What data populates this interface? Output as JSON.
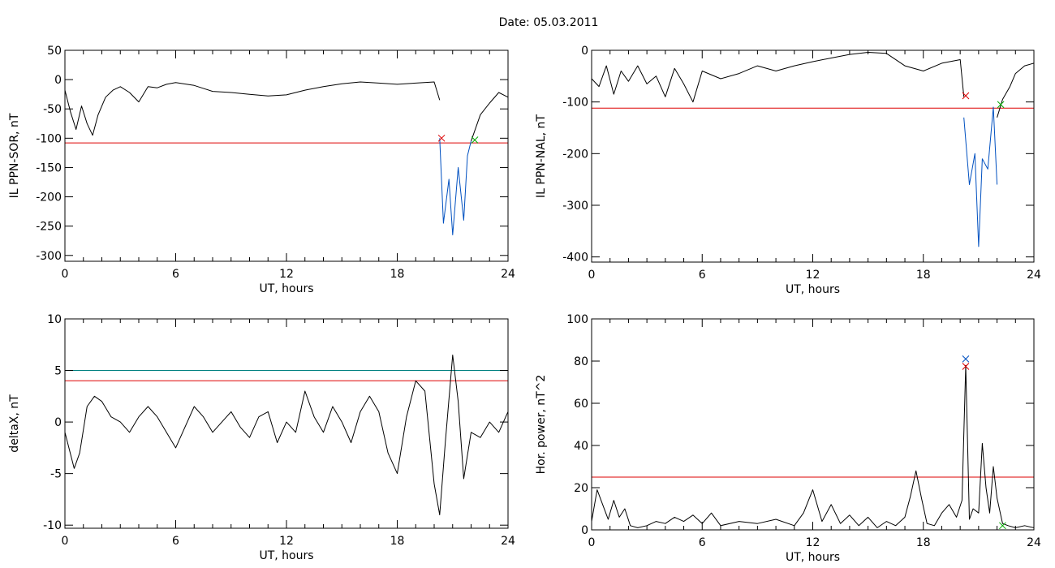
{
  "figure": {
    "title": "Date:  05.03.2011"
  },
  "chart_data": [
    {
      "type": "line",
      "title": "",
      "xlabel": "UT, hours",
      "ylabel": "IL PPN-SOR, nT",
      "xlim": [
        0,
        24
      ],
      "ylim": [
        -310,
        50
      ],
      "xticks": [
        0,
        6,
        12,
        18,
        24
      ],
      "yticks": [
        50,
        0,
        -50,
        -100,
        -150,
        -200,
        -250,
        -300
      ],
      "grid": false,
      "series": [
        {
          "color": "#000000",
          "x": [
            0,
            0.3,
            0.6,
            0.9,
            1.2,
            1.5,
            1.8,
            2.2,
            2.6,
            3,
            3.5,
            4,
            4.5,
            5,
            5.5,
            6,
            7,
            8,
            9,
            10,
            11,
            12,
            13,
            14,
            15,
            16,
            17,
            18,
            19,
            20,
            20.3
          ],
          "y": [
            -18,
            -55,
            -85,
            -45,
            -75,
            -95,
            -60,
            -30,
            -18,
            -12,
            -22,
            -38,
            -12,
            -14,
            -8,
            -5,
            -10,
            -20,
            -22,
            -25,
            -28,
            -26,
            -18,
            -12,
            -7,
            -4,
            -6,
            -8,
            -6,
            -4,
            -35
          ]
        },
        {
          "color": "#0050c0",
          "x": [
            20.3,
            20.5,
            20.8,
            21.0,
            21.3,
            21.6,
            21.8,
            22.0
          ],
          "y": [
            -100,
            -245,
            -170,
            -265,
            -150,
            -240,
            -130,
            -105
          ]
        },
        {
          "color": "#000000",
          "x": [
            22.0,
            22.5,
            23,
            23.5,
            24
          ],
          "y": [
            -105,
            -60,
            -40,
            -22,
            -30
          ]
        }
      ],
      "thresholds": [
        {
          "value": -108,
          "color": "#dd0000"
        }
      ],
      "markers": [
        {
          "x": 20.4,
          "y": -100,
          "symbol": "x",
          "color": "#dd0000"
        },
        {
          "x": 22.2,
          "y": -103,
          "symbol": "x",
          "color": "#00aa00"
        }
      ]
    },
    {
      "type": "line",
      "title": "",
      "xlabel": "UT, hours",
      "ylabel": "IL PPN-NAL, nT",
      "xlim": [
        0,
        24
      ],
      "ylim": [
        -410,
        0
      ],
      "xticks": [
        0,
        6,
        12,
        18,
        24
      ],
      "yticks": [
        0,
        -100,
        -200,
        -300,
        -400
      ],
      "grid": false,
      "series": [
        {
          "color": "#000000",
          "x": [
            0,
            0.4,
            0.8,
            1.2,
            1.6,
            2.0,
            2.5,
            3,
            3.5,
            4,
            4.5,
            5,
            5.5,
            6,
            7,
            8,
            9,
            10,
            11,
            12,
            13,
            14,
            15,
            16,
            17,
            18,
            19,
            20,
            20.2
          ],
          "y": [
            -55,
            -70,
            -30,
            -85,
            -40,
            -60,
            -30,
            -65,
            -50,
            -90,
            -35,
            -65,
            -100,
            -40,
            -55,
            -45,
            -30,
            -40,
            -30,
            -22,
            -15,
            -8,
            -4,
            -6,
            -30,
            -40,
            -25,
            -18,
            -90
          ]
        },
        {
          "color": "#0050c0",
          "x": [
            20.2,
            20.5,
            20.8,
            21.0,
            21.2,
            21.5,
            21.8,
            22.0
          ],
          "y": [
            -130,
            -260,
            -200,
            -380,
            -210,
            -230,
            -110,
            -260
          ]
        },
        {
          "color": "#000000",
          "x": [
            22.0,
            22.3,
            22.7,
            23,
            23.5,
            24
          ],
          "y": [
            -130,
            -95,
            -70,
            -45,
            -30,
            -25
          ]
        }
      ],
      "thresholds": [
        {
          "value": -112,
          "color": "#dd0000"
        }
      ],
      "markers": [
        {
          "x": 20.3,
          "y": -88,
          "symbol": "x",
          "color": "#dd0000"
        },
        {
          "x": 22.2,
          "y": -105,
          "symbol": "x",
          "color": "#00aa00"
        }
      ]
    },
    {
      "type": "line",
      "title": "",
      "xlabel": "UT, hours",
      "ylabel": "deltaX, nT",
      "xlim": [
        0,
        24
      ],
      "ylim": [
        -10.3,
        10
      ],
      "xticks": [
        0,
        6,
        12,
        18,
        24
      ],
      "yticks": [
        10,
        5,
        0,
        -5,
        -10
      ],
      "grid": false,
      "series": [
        {
          "color": "#000000",
          "x": [
            0,
            0.5,
            0.8,
            1.2,
            1.6,
            2,
            2.5,
            3,
            3.5,
            4,
            4.5,
            5,
            5.5,
            6,
            6.5,
            7,
            7.5,
            8,
            8.5,
            9,
            9.5,
            10,
            10.5,
            11,
            11.5,
            12,
            12.5,
            13,
            13.5,
            14,
            14.5,
            15,
            15.5,
            16,
            16.5,
            17,
            17.5,
            18,
            18.5,
            19,
            19.5,
            20,
            20.3,
            20.6,
            21,
            21.3,
            21.6,
            22,
            22.5,
            23,
            23.5,
            24
          ],
          "y": [
            -1,
            -4.5,
            -3,
            1.5,
            2.5,
            2,
            0.5,
            0,
            -1,
            0.5,
            1.5,
            0.5,
            -1,
            -2.5,
            -0.5,
            1.5,
            0.5,
            -1,
            0,
            1,
            -0.5,
            -1.5,
            0.5,
            1,
            -2,
            0,
            -1,
            3,
            0.5,
            -1,
            1.5,
            0,
            -2,
            1,
            2.5,
            1,
            -3,
            -5,
            0.5,
            4,
            3,
            -6,
            -9,
            -2,
            6.5,
            2,
            -5.5,
            -1,
            -1.5,
            0,
            -1,
            1
          ]
        }
      ],
      "thresholds": [
        {
          "value": 5,
          "color": "#008080"
        },
        {
          "value": 4,
          "color": "#dd0000"
        }
      ],
      "markers": []
    },
    {
      "type": "line",
      "title": "",
      "xlabel": "UT, hours",
      "ylabel": "Hor. power, nT^2",
      "xlim": [
        0,
        24
      ],
      "ylim": [
        0,
        100
      ],
      "xticks": [
        0,
        6,
        12,
        18,
        24
      ],
      "yticks": [
        0,
        20,
        40,
        60,
        80,
        100
      ],
      "grid": false,
      "series": [
        {
          "color": "#000000",
          "x": [
            0,
            0.3,
            0.6,
            0.9,
            1.2,
            1.5,
            1.8,
            2.1,
            2.5,
            3,
            3.5,
            4,
            4.5,
            5,
            5.5,
            6,
            6.5,
            7,
            8,
            9,
            10,
            11,
            11.5,
            12,
            12.5,
            13,
            13.5,
            14,
            14.5,
            15,
            15.5,
            16,
            16.5,
            17,
            17.3,
            17.6,
            17.9,
            18.2,
            18.6,
            19,
            19.4,
            19.8,
            20.1,
            20.3,
            20.5,
            20.7,
            21,
            21.2,
            21.4,
            21.6,
            21.8,
            22,
            22.3,
            22.6,
            23,
            23.5,
            24
          ],
          "y": [
            4,
            19,
            12,
            5,
            14,
            6,
            10,
            2,
            1,
            2,
            4,
            3,
            6,
            4,
            7,
            3,
            8,
            2,
            4,
            3,
            5,
            2,
            8,
            19,
            4,
            12,
            3,
            7,
            2,
            6,
            1,
            4,
            2,
            6,
            16,
            28,
            15,
            3,
            2,
            8,
            12,
            6,
            14,
            78,
            5,
            10,
            8,
            41,
            20,
            8,
            30,
            15,
            3,
            2,
            1,
            2,
            1
          ]
        }
      ],
      "thresholds": [
        {
          "value": 25,
          "color": "#dd0000"
        }
      ],
      "markers": [
        {
          "x": 20.3,
          "y": 81,
          "symbol": "x",
          "color": "#0050c0"
        },
        {
          "x": 20.3,
          "y": 77.5,
          "symbol": "x",
          "color": "#dd0000"
        },
        {
          "x": 22.3,
          "y": 2,
          "symbol": "x",
          "color": "#00aa00"
        }
      ]
    }
  ]
}
